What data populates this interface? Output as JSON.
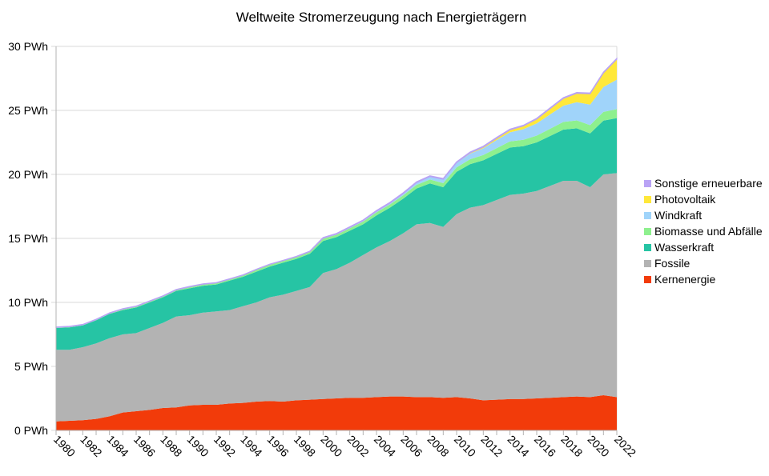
{
  "chart_data": {
    "type": "area",
    "stacked": true,
    "title": "Weltweite Stromerzeugung nach Energieträgern",
    "xlabel": "",
    "ylabel": "",
    "ylim": [
      0,
      30
    ],
    "y_ticks": [
      "0 PWh",
      "5 PWh",
      "10 PWh",
      "15 PWh",
      "20 PWh",
      "25 PWh",
      "30 PWh"
    ],
    "y_tick_values": [
      0,
      5,
      10,
      15,
      20,
      25,
      30
    ],
    "grid": true,
    "legend_position": "right",
    "x": [
      1980,
      1981,
      1982,
      1983,
      1984,
      1985,
      1986,
      1987,
      1988,
      1989,
      1990,
      1991,
      1992,
      1993,
      1994,
      1995,
      1996,
      1997,
      1998,
      1999,
      2000,
      2001,
      2002,
      2003,
      2004,
      2005,
      2006,
      2007,
      2008,
      2009,
      2010,
      2011,
      2012,
      2013,
      2014,
      2015,
      2016,
      2017,
      2018,
      2019,
      2020,
      2021,
      2022
    ],
    "x_tick_labels": [
      "1980",
      "1982",
      "1984",
      "1986",
      "1988",
      "1990",
      "1992",
      "1994",
      "1996",
      "1998",
      "2000",
      "2002",
      "2004",
      "2006",
      "2008",
      "2010",
      "2012",
      "2014",
      "2016",
      "2018",
      "2020",
      "2022"
    ],
    "series": [
      {
        "name": "Kernenergie",
        "color": "#f23b0a",
        "values": [
          0.7,
          0.75,
          0.8,
          0.9,
          1.1,
          1.4,
          1.5,
          1.6,
          1.75,
          1.8,
          1.95,
          2.0,
          2.0,
          2.1,
          2.15,
          2.25,
          2.3,
          2.25,
          2.35,
          2.4,
          2.45,
          2.5,
          2.55,
          2.55,
          2.6,
          2.65,
          2.65,
          2.6,
          2.6,
          2.55,
          2.6,
          2.5,
          2.35,
          2.4,
          2.45,
          2.45,
          2.5,
          2.55,
          2.6,
          2.65,
          2.6,
          2.75,
          2.6
        ]
      },
      {
        "name": "Fossile",
        "color": "#b3b3b3",
        "values": [
          5.6,
          5.55,
          5.7,
          5.9,
          6.1,
          6.1,
          6.1,
          6.4,
          6.65,
          7.1,
          7.05,
          7.2,
          7.3,
          7.3,
          7.55,
          7.75,
          8.1,
          8.35,
          8.55,
          8.8,
          9.85,
          10.1,
          10.55,
          11.15,
          11.7,
          12.15,
          12.75,
          13.5,
          13.6,
          13.35,
          14.3,
          14.9,
          15.25,
          15.6,
          15.95,
          16.05,
          16.2,
          16.55,
          16.9,
          16.85,
          16.4,
          17.25,
          17.5
        ]
      },
      {
        "name": "Wasserkraft",
        "color": "#26c4a4",
        "values": [
          1.7,
          1.75,
          1.7,
          1.8,
          1.9,
          1.9,
          2.0,
          2.0,
          2.0,
          2.0,
          2.1,
          2.1,
          2.1,
          2.3,
          2.3,
          2.4,
          2.4,
          2.5,
          2.5,
          2.6,
          2.5,
          2.5,
          2.5,
          2.4,
          2.5,
          2.6,
          2.7,
          2.8,
          3.1,
          3.1,
          3.3,
          3.4,
          3.5,
          3.6,
          3.7,
          3.7,
          3.8,
          3.9,
          4.0,
          4.1,
          4.2,
          4.2,
          4.3
        ]
      },
      {
        "name": "Biomasse und Abfälle",
        "color": "#8ef08e",
        "values": [
          0.05,
          0.05,
          0.05,
          0.05,
          0.05,
          0.08,
          0.08,
          0.08,
          0.08,
          0.08,
          0.12,
          0.12,
          0.12,
          0.12,
          0.12,
          0.15,
          0.15,
          0.15,
          0.15,
          0.15,
          0.18,
          0.19,
          0.2,
          0.22,
          0.24,
          0.25,
          0.27,
          0.28,
          0.3,
          0.32,
          0.35,
          0.38,
          0.42,
          0.45,
          0.48,
          0.5,
          0.53,
          0.56,
          0.6,
          0.62,
          0.65,
          0.68,
          0.7
        ]
      },
      {
        "name": "Windkraft",
        "color": "#a0d4fa",
        "values": [
          0,
          0,
          0,
          0,
          0,
          0,
          0,
          0,
          0,
          0,
          0,
          0,
          0,
          0,
          0,
          0.01,
          0.01,
          0.01,
          0.02,
          0.02,
          0.03,
          0.04,
          0.05,
          0.06,
          0.08,
          0.1,
          0.13,
          0.17,
          0.22,
          0.28,
          0.34,
          0.44,
          0.52,
          0.64,
          0.71,
          0.83,
          0.96,
          1.13,
          1.27,
          1.42,
          1.6,
          1.95,
          2.3
        ]
      },
      {
        "name": "Photovoltaik",
        "color": "#ffe83a",
        "values": [
          0,
          0,
          0,
          0,
          0,
          0,
          0,
          0,
          0,
          0,
          0,
          0,
          0,
          0,
          0,
          0,
          0,
          0,
          0,
          0,
          0,
          0,
          0,
          0,
          0,
          0,
          0,
          0.01,
          0.01,
          0.02,
          0.03,
          0.06,
          0.1,
          0.14,
          0.19,
          0.25,
          0.33,
          0.45,
          0.57,
          0.7,
          0.85,
          1.1,
          1.6
        ]
      },
      {
        "name": "Sonstige erneuerbare",
        "color": "#b9a3f5",
        "values": [
          0.03,
          0.03,
          0.03,
          0.03,
          0.03,
          0.03,
          0.03,
          0.03,
          0.03,
          0.03,
          0.03,
          0.03,
          0.03,
          0.03,
          0.03,
          0.03,
          0.03,
          0.03,
          0.03,
          0.03,
          0.06,
          0.06,
          0.06,
          0.06,
          0.06,
          0.06,
          0.06,
          0.06,
          0.06,
          0.06,
          0.06,
          0.06,
          0.06,
          0.06,
          0.06,
          0.06,
          0.06,
          0.06,
          0.06,
          0.06,
          0.06,
          0.06,
          0.06
        ]
      }
    ],
    "legend_order": [
      "Sonstige erneuerbare",
      "Photovoltaik",
      "Windkraft",
      "Biomasse und Abfälle",
      "Wasserkraft",
      "Fossile",
      "Kernenergie"
    ]
  }
}
